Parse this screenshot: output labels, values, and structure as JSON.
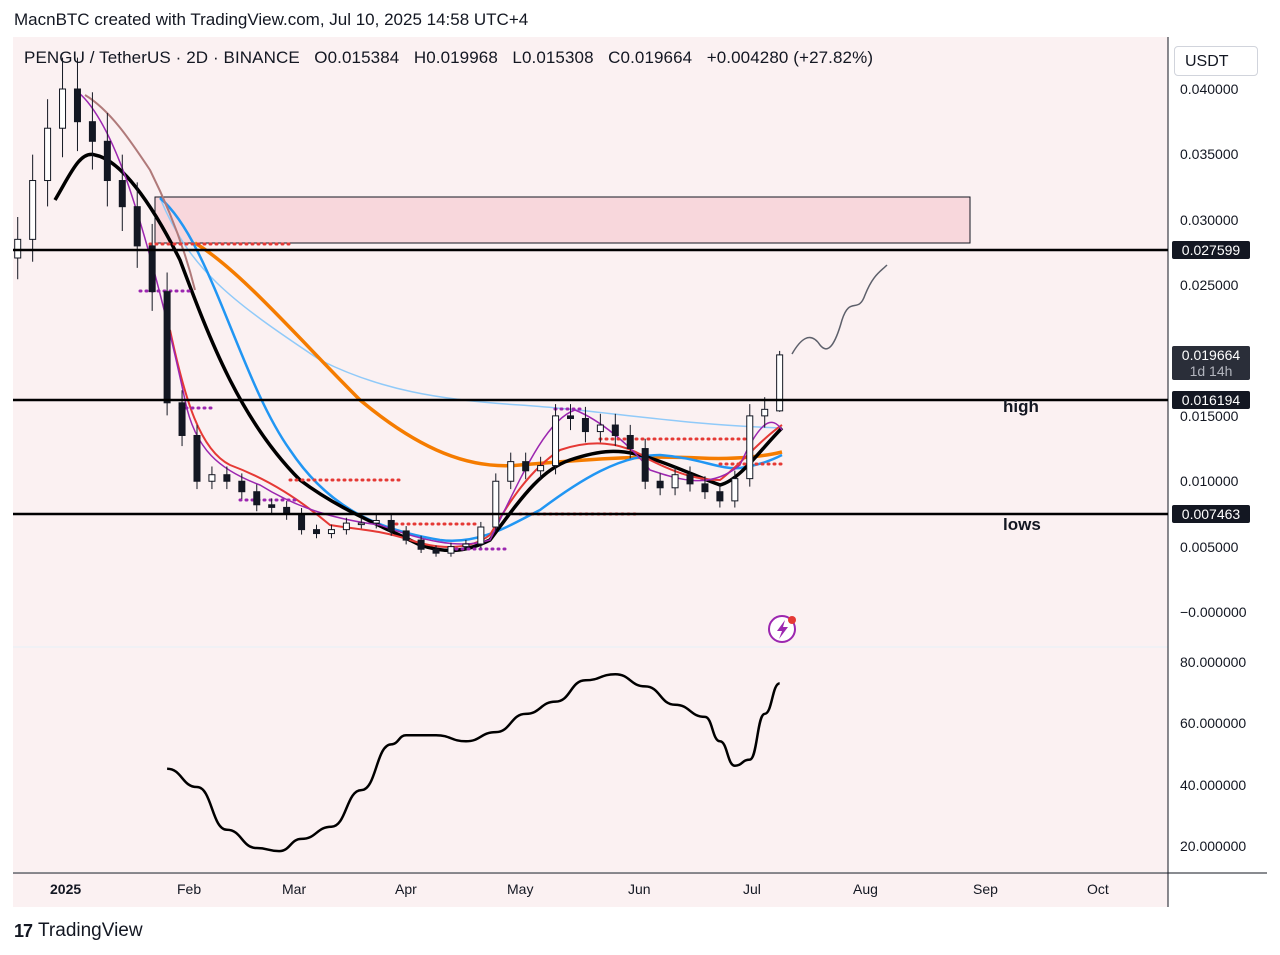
{
  "header": {
    "credit": "MacnBTC created with TradingView.com, Jul 10, 2025 14:58 UTC+4"
  },
  "legend": {
    "symbol": "PENGU / TetherUS · 2D · BINANCE",
    "open": "O0.015384",
    "high": "H0.019968",
    "low": "L0.015308",
    "close": "C0.019664",
    "change": "+0.004280 (+27.82%)"
  },
  "currency": "USDT",
  "price_axis": {
    "labels": [
      "0.040000",
      "0.035000",
      "0.030000",
      "0.025000",
      "0.015000",
      "0.010000",
      "0.005000",
      "−0.000000"
    ]
  },
  "indicator_axis": {
    "labels": [
      "80.000000",
      "60.000000",
      "40.000000",
      "20.000000"
    ]
  },
  "time_axis": {
    "labels": [
      "2025",
      "Feb",
      "Mar",
      "Apr",
      "May",
      "Jun",
      "Jul",
      "Aug",
      "Sep",
      "Oct"
    ]
  },
  "levels": {
    "resistance": "0.027599",
    "high": "0.016194",
    "lows": "0.007463",
    "current": "0.019664",
    "countdown": "1d 14h"
  },
  "annotations": {
    "high": "high",
    "lows": "lows"
  },
  "footer": {
    "brand": "TradingView",
    "mark": "17"
  },
  "colors": {
    "pane_bg": "#fbf1f2",
    "up": "#ffffff",
    "down": "#131722",
    "ema_fast": "#e53935",
    "ema_black": "#000000",
    "sma_blue": "#2196f3",
    "sma_orange": "#f57c00",
    "sma_lightblue": "#90caf9",
    "purple": "#9c27b0",
    "supply_zone": "#f8d7dc",
    "oscillator": "#000000"
  },
  "chart_data": {
    "type": "candlestick",
    "timeframe": "2D",
    "symbol": "PENGUUSDT",
    "close_series": [
      {
        "date": "2024-12-18",
        "close": 0.0285
      },
      {
        "date": "2024-12-22",
        "close": 0.033
      },
      {
        "date": "2024-12-26",
        "close": 0.037
      },
      {
        "date": "2024-12-30",
        "close": 0.04
      },
      {
        "date": "2025-01-03",
        "close": 0.0375
      },
      {
        "date": "2025-01-07",
        "close": 0.036
      },
      {
        "date": "2025-01-11",
        "close": 0.033
      },
      {
        "date": "2025-01-15",
        "close": 0.031
      },
      {
        "date": "2025-01-19",
        "close": 0.028
      },
      {
        "date": "2025-01-23",
        "close": 0.0245
      },
      {
        "date": "2025-01-27",
        "close": 0.016
      },
      {
        "date": "2025-01-31",
        "close": 0.0135
      },
      {
        "date": "2025-02-04",
        "close": 0.01
      },
      {
        "date": "2025-02-08",
        "close": 0.0105
      },
      {
        "date": "2025-02-12",
        "close": 0.01
      },
      {
        "date": "2025-02-16",
        "close": 0.0092
      },
      {
        "date": "2025-02-20",
        "close": 0.0082
      },
      {
        "date": "2025-02-24",
        "close": 0.008
      },
      {
        "date": "2025-02-28",
        "close": 0.0075
      },
      {
        "date": "2025-03-04",
        "close": 0.0063
      },
      {
        "date": "2025-03-08",
        "close": 0.006
      },
      {
        "date": "2025-03-12",
        "close": 0.0063
      },
      {
        "date": "2025-03-16",
        "close": 0.0068
      },
      {
        "date": "2025-03-20",
        "close": 0.0068
      },
      {
        "date": "2025-03-24",
        "close": 0.007
      },
      {
        "date": "2025-03-28",
        "close": 0.0062
      },
      {
        "date": "2025-04-01",
        "close": 0.0055
      },
      {
        "date": "2025-04-05",
        "close": 0.0048
      },
      {
        "date": "2025-04-09",
        "close": 0.0045
      },
      {
        "date": "2025-04-13",
        "close": 0.005
      },
      {
        "date": "2025-04-17",
        "close": 0.0052
      },
      {
        "date": "2025-04-21",
        "close": 0.0065
      },
      {
        "date": "2025-04-25",
        "close": 0.01
      },
      {
        "date": "2025-04-29",
        "close": 0.0115
      },
      {
        "date": "2025-05-03",
        "close": 0.0108
      },
      {
        "date": "2025-05-07",
        "close": 0.0112
      },
      {
        "date": "2025-05-11",
        "close": 0.015
      },
      {
        "date": "2025-05-15",
        "close": 0.0148
      },
      {
        "date": "2025-05-19",
        "close": 0.0138
      },
      {
        "date": "2025-05-23",
        "close": 0.0143
      },
      {
        "date": "2025-05-27",
        "close": 0.0135
      },
      {
        "date": "2025-05-31",
        "close": 0.0125
      },
      {
        "date": "2025-06-04",
        "close": 0.01
      },
      {
        "date": "2025-06-08",
        "close": 0.0095
      },
      {
        "date": "2025-06-12",
        "close": 0.0105
      },
      {
        "date": "2025-06-16",
        "close": 0.0098
      },
      {
        "date": "2025-06-20",
        "close": 0.0092
      },
      {
        "date": "2025-06-24",
        "close": 0.0085
      },
      {
        "date": "2025-06-28",
        "close": 0.0102
      },
      {
        "date": "2025-07-02",
        "close": 0.015
      },
      {
        "date": "2025-07-06",
        "close": 0.0155
      },
      {
        "date": "2025-07-10",
        "close": 0.019664
      }
    ],
    "last_candle": {
      "open": 0.015384,
      "high": 0.019968,
      "low": 0.015308,
      "close": 0.019664,
      "change": 0.00428,
      "change_pct": 27.82
    },
    "horizontal_levels": [
      0.027599,
      0.016194,
      0.007463
    ],
    "supply_zone": [
      0.028,
      0.0315
    ],
    "ylim": [
      -0.001,
      0.0425
    ],
    "oscillator": {
      "ylim": [
        10,
        90
      ],
      "points": [
        {
          "date": "2025-01-27",
          "value": 45
        },
        {
          "date": "2025-02-04",
          "value": 39
        },
        {
          "date": "2025-02-12",
          "value": 25
        },
        {
          "date": "2025-02-20",
          "value": 19
        },
        {
          "date": "2025-02-26",
          "value": 18
        },
        {
          "date": "2025-03-04",
          "value": 22
        },
        {
          "date": "2025-03-12",
          "value": 26
        },
        {
          "date": "2025-03-20",
          "value": 38
        },
        {
          "date": "2025-03-28",
          "value": 53
        },
        {
          "date": "2025-04-01",
          "value": 56
        },
        {
          "date": "2025-04-09",
          "value": 56
        },
        {
          "date": "2025-04-17",
          "value": 54
        },
        {
          "date": "2025-04-25",
          "value": 57
        },
        {
          "date": "2025-05-03",
          "value": 63
        },
        {
          "date": "2025-05-11",
          "value": 67
        },
        {
          "date": "2025-05-19",
          "value": 74
        },
        {
          "date": "2025-05-27",
          "value": 76
        },
        {
          "date": "2025-06-04",
          "value": 72
        },
        {
          "date": "2025-06-12",
          "value": 66
        },
        {
          "date": "2025-06-20",
          "value": 62
        },
        {
          "date": "2025-06-24",
          "value": 54
        },
        {
          "date": "2025-06-28",
          "value": 46
        },
        {
          "date": "2025-07-02",
          "value": 48
        },
        {
          "date": "2025-07-06",
          "value": 63
        },
        {
          "date": "2025-07-10",
          "value": 73
        }
      ]
    }
  }
}
